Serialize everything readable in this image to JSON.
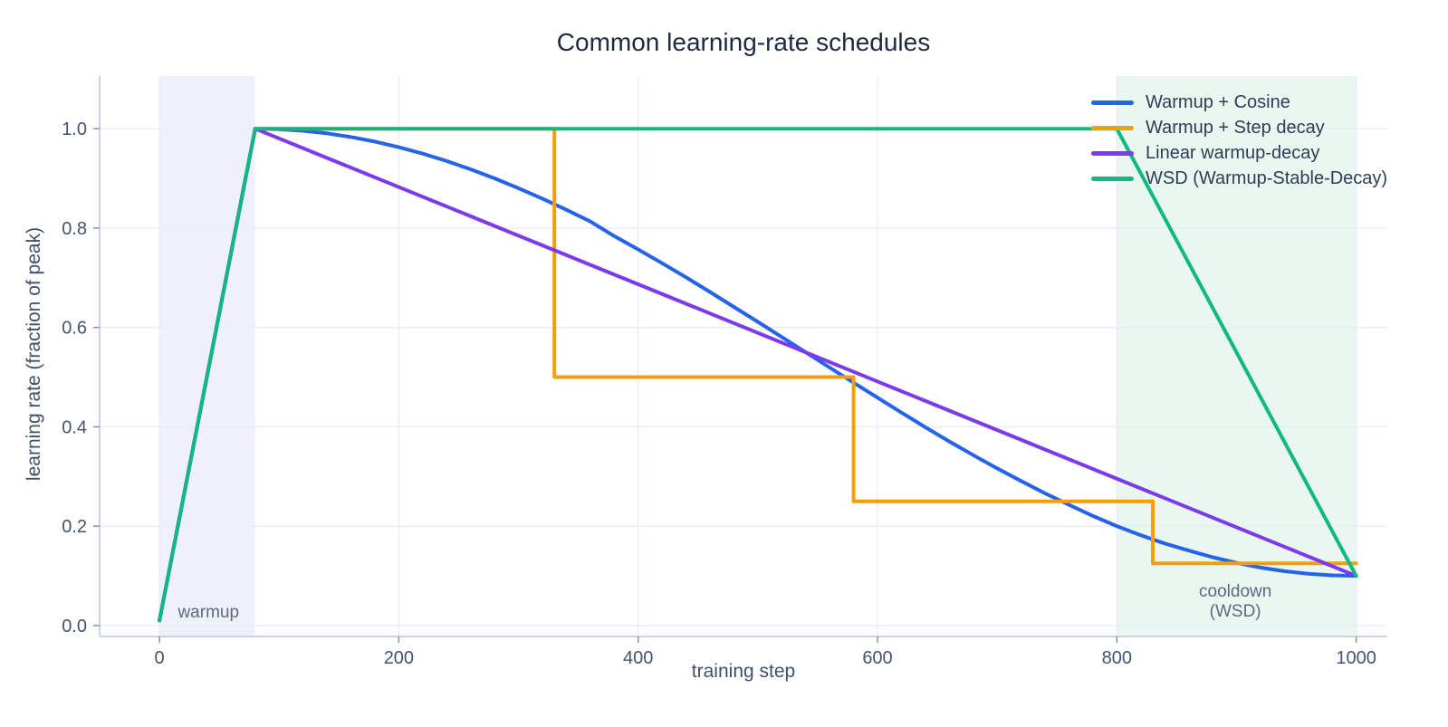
{
  "chart_data": {
    "type": "line",
    "title": "Common learning-rate schedules",
    "xlabel": "training step",
    "ylabel": "learning rate (fraction of peak)",
    "xlim": [
      -50,
      1026
    ],
    "ylim": [
      -0.022,
      1.106
    ],
    "grid": true,
    "legend_position": "top-right",
    "xtick_values": [
      0,
      200,
      400,
      600,
      800,
      1000
    ],
    "xtick_labels": [
      "0",
      "200",
      "400",
      "600",
      "800",
      "1000"
    ],
    "ytick_values": [
      0,
      0.2,
      0.4,
      0.6,
      0.8,
      1.0
    ],
    "ytick_labels": [
      "0.0",
      "0.2",
      "0.4",
      "0.6",
      "0.8",
      "1.0"
    ],
    "bands": [
      {
        "name": "warmup",
        "from": 0,
        "to": 80,
        "color": "#eef1fa"
      },
      {
        "name": "cooldown-wsd",
        "from": 800,
        "to": 1000,
        "color": "#eaf6f0"
      }
    ],
    "annotations": [
      {
        "text": "warmup",
        "x": 41,
        "y": 0.026,
        "color": "#5a6a80"
      },
      {
        "text": "cooldown\n(WSD)",
        "x": 899,
        "y": 0.047,
        "color": "#5a6a80"
      }
    ],
    "series": [
      {
        "name": "Warmup + Cosine",
        "color": "#2563eb",
        "schedule": "linear warmup 0-80 from 0.01 to 1.0, cosine decay to 0.1 at step 1000",
        "points": [
          [
            0,
            0.01
          ],
          [
            80,
            1.0
          ],
          [
            100,
            0.999
          ],
          [
            120,
            0.9958
          ],
          [
            140,
            0.9906
          ],
          [
            160,
            0.9833
          ],
          [
            180,
            0.9741
          ],
          [
            200,
            0.9628
          ],
          [
            220,
            0.9498
          ],
          [
            240,
            0.9349
          ],
          [
            260,
            0.9183
          ],
          [
            280,
            0.9
          ],
          [
            300,
            0.8803
          ],
          [
            320,
            0.8592
          ],
          [
            340,
            0.8368
          ],
          [
            360,
            0.8133
          ],
          [
            380,
            0.7838
          ],
          [
            400,
            0.757
          ],
          [
            420,
            0.7294
          ],
          [
            440,
            0.7009
          ],
          [
            460,
            0.6714
          ],
          [
            480,
            0.6413
          ],
          [
            500,
            0.6112
          ],
          [
            520,
            0.5807
          ],
          [
            540,
            0.55
          ],
          [
            560,
            0.5193
          ],
          [
            580,
            0.4887
          ],
          [
            600,
            0.4587
          ],
          [
            620,
            0.4286
          ],
          [
            640,
            0.3991
          ],
          [
            660,
            0.3706
          ],
          [
            680,
            0.343
          ],
          [
            700,
            0.3162
          ],
          [
            720,
            0.2908
          ],
          [
            740,
            0.2661
          ],
          [
            760,
            0.2429
          ],
          [
            780,
            0.2206
          ],
          [
            800,
            0.2001
          ],
          [
            820,
            0.1817
          ],
          [
            840,
            0.1652
          ],
          [
            860,
            0.1509
          ],
          [
            880,
            0.1374
          ],
          [
            900,
            0.1261
          ],
          [
            920,
            0.1166
          ],
          [
            940,
            0.1094
          ],
          [
            960,
            0.1042
          ],
          [
            980,
            0.101
          ],
          [
            1000,
            0.1
          ]
        ]
      },
      {
        "name": "Warmup + Step decay",
        "color": "#f59e0b",
        "schedule": "linear warmup 0-80 to 1.0, halve at steps 330, 580, 830 (1.0 -> 0.5 -> 0.25 -> 0.125)",
        "points": [
          [
            0,
            0.01
          ],
          [
            80,
            1.0
          ],
          [
            330,
            1.0
          ],
          [
            330,
            0.5
          ],
          [
            580,
            0.5
          ],
          [
            580,
            0.25
          ],
          [
            830,
            0.25
          ],
          [
            830,
            0.125
          ],
          [
            1000,
            0.125
          ]
        ]
      },
      {
        "name": "Linear warmup-decay",
        "color": "#7c3aed",
        "schedule": "linear warmup 0-80 to 1.0, linear decay to 0.1 at step 1000",
        "points": [
          [
            0,
            0.01
          ],
          [
            80,
            1.0
          ],
          [
            1000,
            0.1
          ]
        ]
      },
      {
        "name": "WSD (Warmup-Stable-Decay)",
        "color": "#10b981",
        "schedule": "linear warmup 0-80 to 1.0, stable at 1.0 until 800, linear decay to 0.1 at step 1000",
        "points": [
          [
            0,
            0.01
          ],
          [
            80,
            1.0
          ],
          [
            800,
            1.0
          ],
          [
            1000,
            0.1
          ]
        ]
      }
    ],
    "styles": {
      "line_width": 4,
      "background": "#ffffff",
      "grid_color": "#e7edf6",
      "axis_color": "#c8d4e3",
      "tick_color": "#8494a8",
      "tick_label_color": "#44536c",
      "axis_title_color": "#3f5069",
      "title_color": "#1d2a42",
      "legend_label_color": "#2c3e55",
      "annotation_color": "#5a6a80"
    }
  }
}
